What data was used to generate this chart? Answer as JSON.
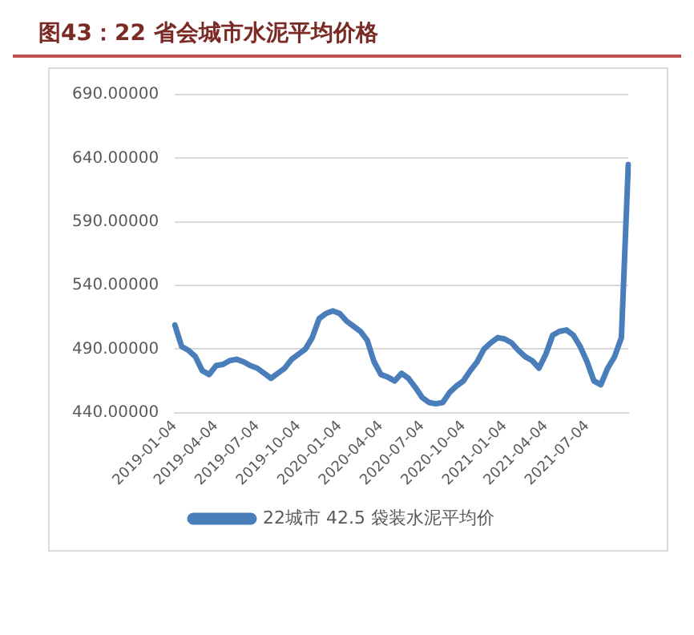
{
  "chart_data": {
    "type": "line",
    "title": "图43：22 省会城市水泥平均价格",
    "categories": [
      "2019-01-04",
      null,
      null,
      null,
      null,
      null,
      "2019-04-04",
      null,
      null,
      null,
      null,
      null,
      "2019-07-04",
      null,
      null,
      null,
      null,
      null,
      "2019-10-04",
      null,
      null,
      null,
      null,
      null,
      "2020-01-04",
      null,
      null,
      null,
      null,
      null,
      "2020-04-04",
      null,
      null,
      null,
      null,
      null,
      "2020-07-04",
      null,
      null,
      null,
      null,
      null,
      "2020-10-04",
      null,
      null,
      null,
      null,
      null,
      "2021-01-04",
      null,
      null,
      null,
      null,
      null,
      "2021-04-04",
      null,
      null,
      null,
      null,
      null,
      "2021-07-04",
      null,
      null,
      null,
      null,
      null,
      null
    ],
    "series": [
      {
        "name": "22城市 42.5 袋装水泥平均价",
        "color": "#4a7ebb",
        "values": [
          509,
          492,
          489,
          484,
          473,
          470,
          477,
          478,
          481,
          482,
          480,
          477,
          475,
          471,
          467,
          471,
          475,
          482,
          486,
          490,
          499,
          514,
          518,
          520,
          518,
          512,
          508,
          504,
          497,
          480,
          470,
          468,
          465,
          471,
          467,
          460,
          452,
          448,
          447,
          448,
          456,
          461,
          465,
          473,
          480,
          490,
          495,
          499,
          498,
          495,
          489,
          484,
          481,
          475,
          486,
          501,
          504,
          505,
          501,
          492,
          480,
          465,
          462,
          475,
          484,
          499,
          635
        ]
      }
    ],
    "ylim": [
      440,
      690
    ],
    "yticks": [
      {
        "value": 440,
        "label": "440.00000"
      },
      {
        "value": 490,
        "label": "490.00000"
      },
      {
        "value": 540,
        "label": "540.00000"
      },
      {
        "value": 590,
        "label": "590.00000"
      },
      {
        "value": 640,
        "label": "640.00000"
      },
      {
        "value": 690,
        "label": "690.00000"
      }
    ],
    "grid": "y",
    "legend": "bottom",
    "marker": "none",
    "line_style": "solid"
  }
}
